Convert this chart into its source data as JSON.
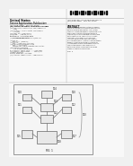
{
  "background_color": "#f0f0f0",
  "page_color": "#f8f8f8",
  "box_fill": "#e8e8e8",
  "box_edge": "#666666",
  "line_color": "#777777",
  "text_color": "#333333",
  "dark_color": "#111111",
  "header_line_color": "#aaaaaa",
  "barcode_color": "#111111",
  "diagram_border": "#888888",
  "diagram_fill": "#f5f5f5",
  "labels": {
    "n104": "104",
    "n100a": "100",
    "n100b": "100",
    "n101": "101",
    "n103": "103",
    "n102a": "102",
    "n102b": "102",
    "n105": "105",
    "n108": "108",
    "n107": "107"
  }
}
